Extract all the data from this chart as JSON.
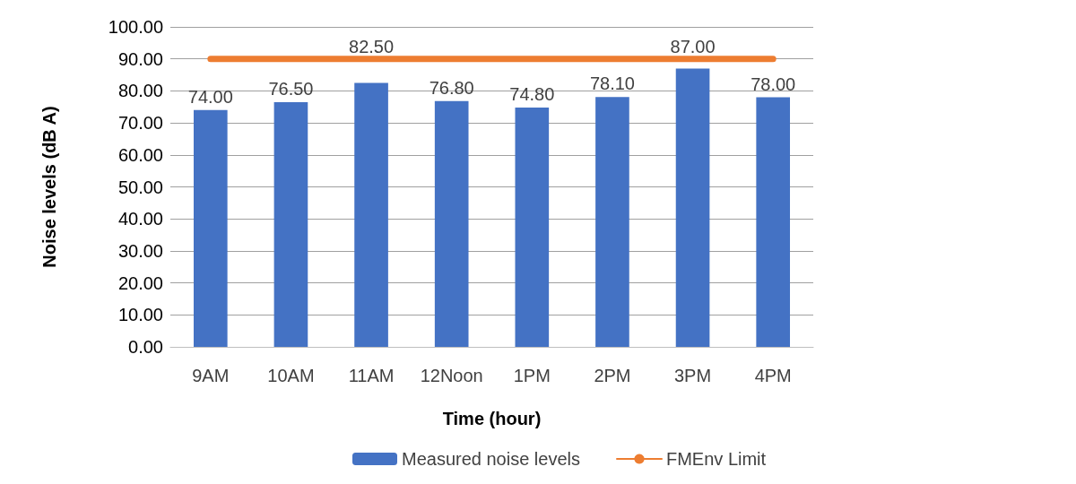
{
  "chart_data": {
    "type": "bar",
    "xlabel": "Time (hour)",
    "ylabel": "Noise levels (dB A)",
    "categories": [
      "9AM",
      "10AM",
      "11AM",
      "12Noon",
      "1PM",
      "2PM",
      "3PM",
      "4PM"
    ],
    "series": [
      {
        "name": "Measured noise levels",
        "type": "bar",
        "color": "#4472c4",
        "values": [
          74.0,
          76.5,
          82.5,
          76.8,
          74.8,
          78.1,
          87.0,
          78.0
        ],
        "value_labels": [
          "74.00",
          "76.50",
          "82.50",
          "76.80",
          "74.80",
          "78.10",
          "87.00",
          "78.00"
        ]
      },
      {
        "name": "FMEnv Limit",
        "type": "line",
        "color": "#ed7d31",
        "values": [
          90,
          90,
          90,
          90,
          90,
          90,
          90,
          90
        ]
      }
    ],
    "ylim": [
      0,
      100
    ],
    "yticks": [
      {
        "value": 0,
        "label": "0.00"
      },
      {
        "value": 10,
        "label": "10.00"
      },
      {
        "value": 20,
        "label": "20.00"
      },
      {
        "value": 30,
        "label": "30.00"
      },
      {
        "value": 40,
        "label": "40.00"
      },
      {
        "value": 50,
        "label": "50.00"
      },
      {
        "value": 60,
        "label": "60.00"
      },
      {
        "value": 70,
        "label": "70.00"
      },
      {
        "value": 80,
        "label": "80.00"
      },
      {
        "value": 90,
        "label": "90.00"
      },
      {
        "value": 100,
        "label": "100.00"
      }
    ],
    "grid": "y",
    "legend": "bottom",
    "marker": "none",
    "line_style": "solid"
  }
}
